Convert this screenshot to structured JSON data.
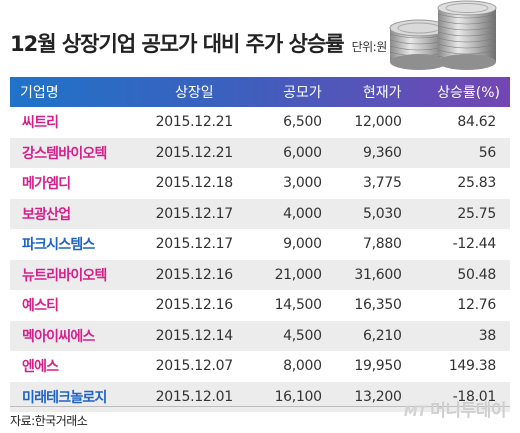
{
  "title": "12월 상장기업 공모가 대비 주가 상승률",
  "unit": "단위:원",
  "columns": [
    "기업명",
    "상장일",
    "공모가",
    "현재가",
    "상승률(%)"
  ],
  "rows": [
    {
      "name": "씨트리",
      "date": "2015.12.21",
      "ipo": "6,500",
      "current": "12,000",
      "rate": "84.62",
      "color": "#d61f8c"
    },
    {
      "name": "강스템바이오텍",
      "date": "2015.12.21",
      "ipo": "6,000",
      "current": "9,360",
      "rate": "56",
      "color": "#d61f8c"
    },
    {
      "name": "메가엠디",
      "date": "2015.12.18",
      "ipo": "3,000",
      "current": "3,775",
      "rate": "25.83",
      "color": "#d61f8c"
    },
    {
      "name": "보광산업",
      "date": "2015.12.17",
      "ipo": "4,000",
      "current": "5,030",
      "rate": "25.75",
      "color": "#d61f8c"
    },
    {
      "name": "파크시스템스",
      "date": "2015.12.17",
      "ipo": "9,000",
      "current": "7,880",
      "rate": "-12.44",
      "color": "#1e63c7"
    },
    {
      "name": "뉴트리바이오텍",
      "date": "2015.12.16",
      "ipo": "21,000",
      "current": "31,600",
      "rate": "50.48",
      "color": "#d61f8c"
    },
    {
      "name": "예스티",
      "date": "2015.12.16",
      "ipo": "14,500",
      "current": "16,350",
      "rate": "12.76",
      "color": "#d61f8c"
    },
    {
      "name": "멕아이씨에스",
      "date": "2015.12.14",
      "ipo": "4,500",
      "current": "6,210",
      "rate": "38",
      "color": "#d61f8c"
    },
    {
      "name": "엔에스",
      "date": "2015.12.07",
      "ipo": "8,000",
      "current": "19,950",
      "rate": "149.38",
      "color": "#d61f8c"
    },
    {
      "name": "미래테크놀로지",
      "date": "2015.12.01",
      "ipo": "16,100",
      "current": "13,200",
      "rate": "-18.01",
      "color": "#1e63c7"
    }
  ],
  "source": "자료:한국거래소",
  "brand": {
    "mark": "MT",
    "name": "머니투데이"
  },
  "colors": {
    "header_start": "#1f73c9",
    "header_end": "#7446b3",
    "up": "#d61f8c",
    "down": "#1e63c7"
  },
  "icons": {
    "coins": "coin-stack-icon"
  }
}
